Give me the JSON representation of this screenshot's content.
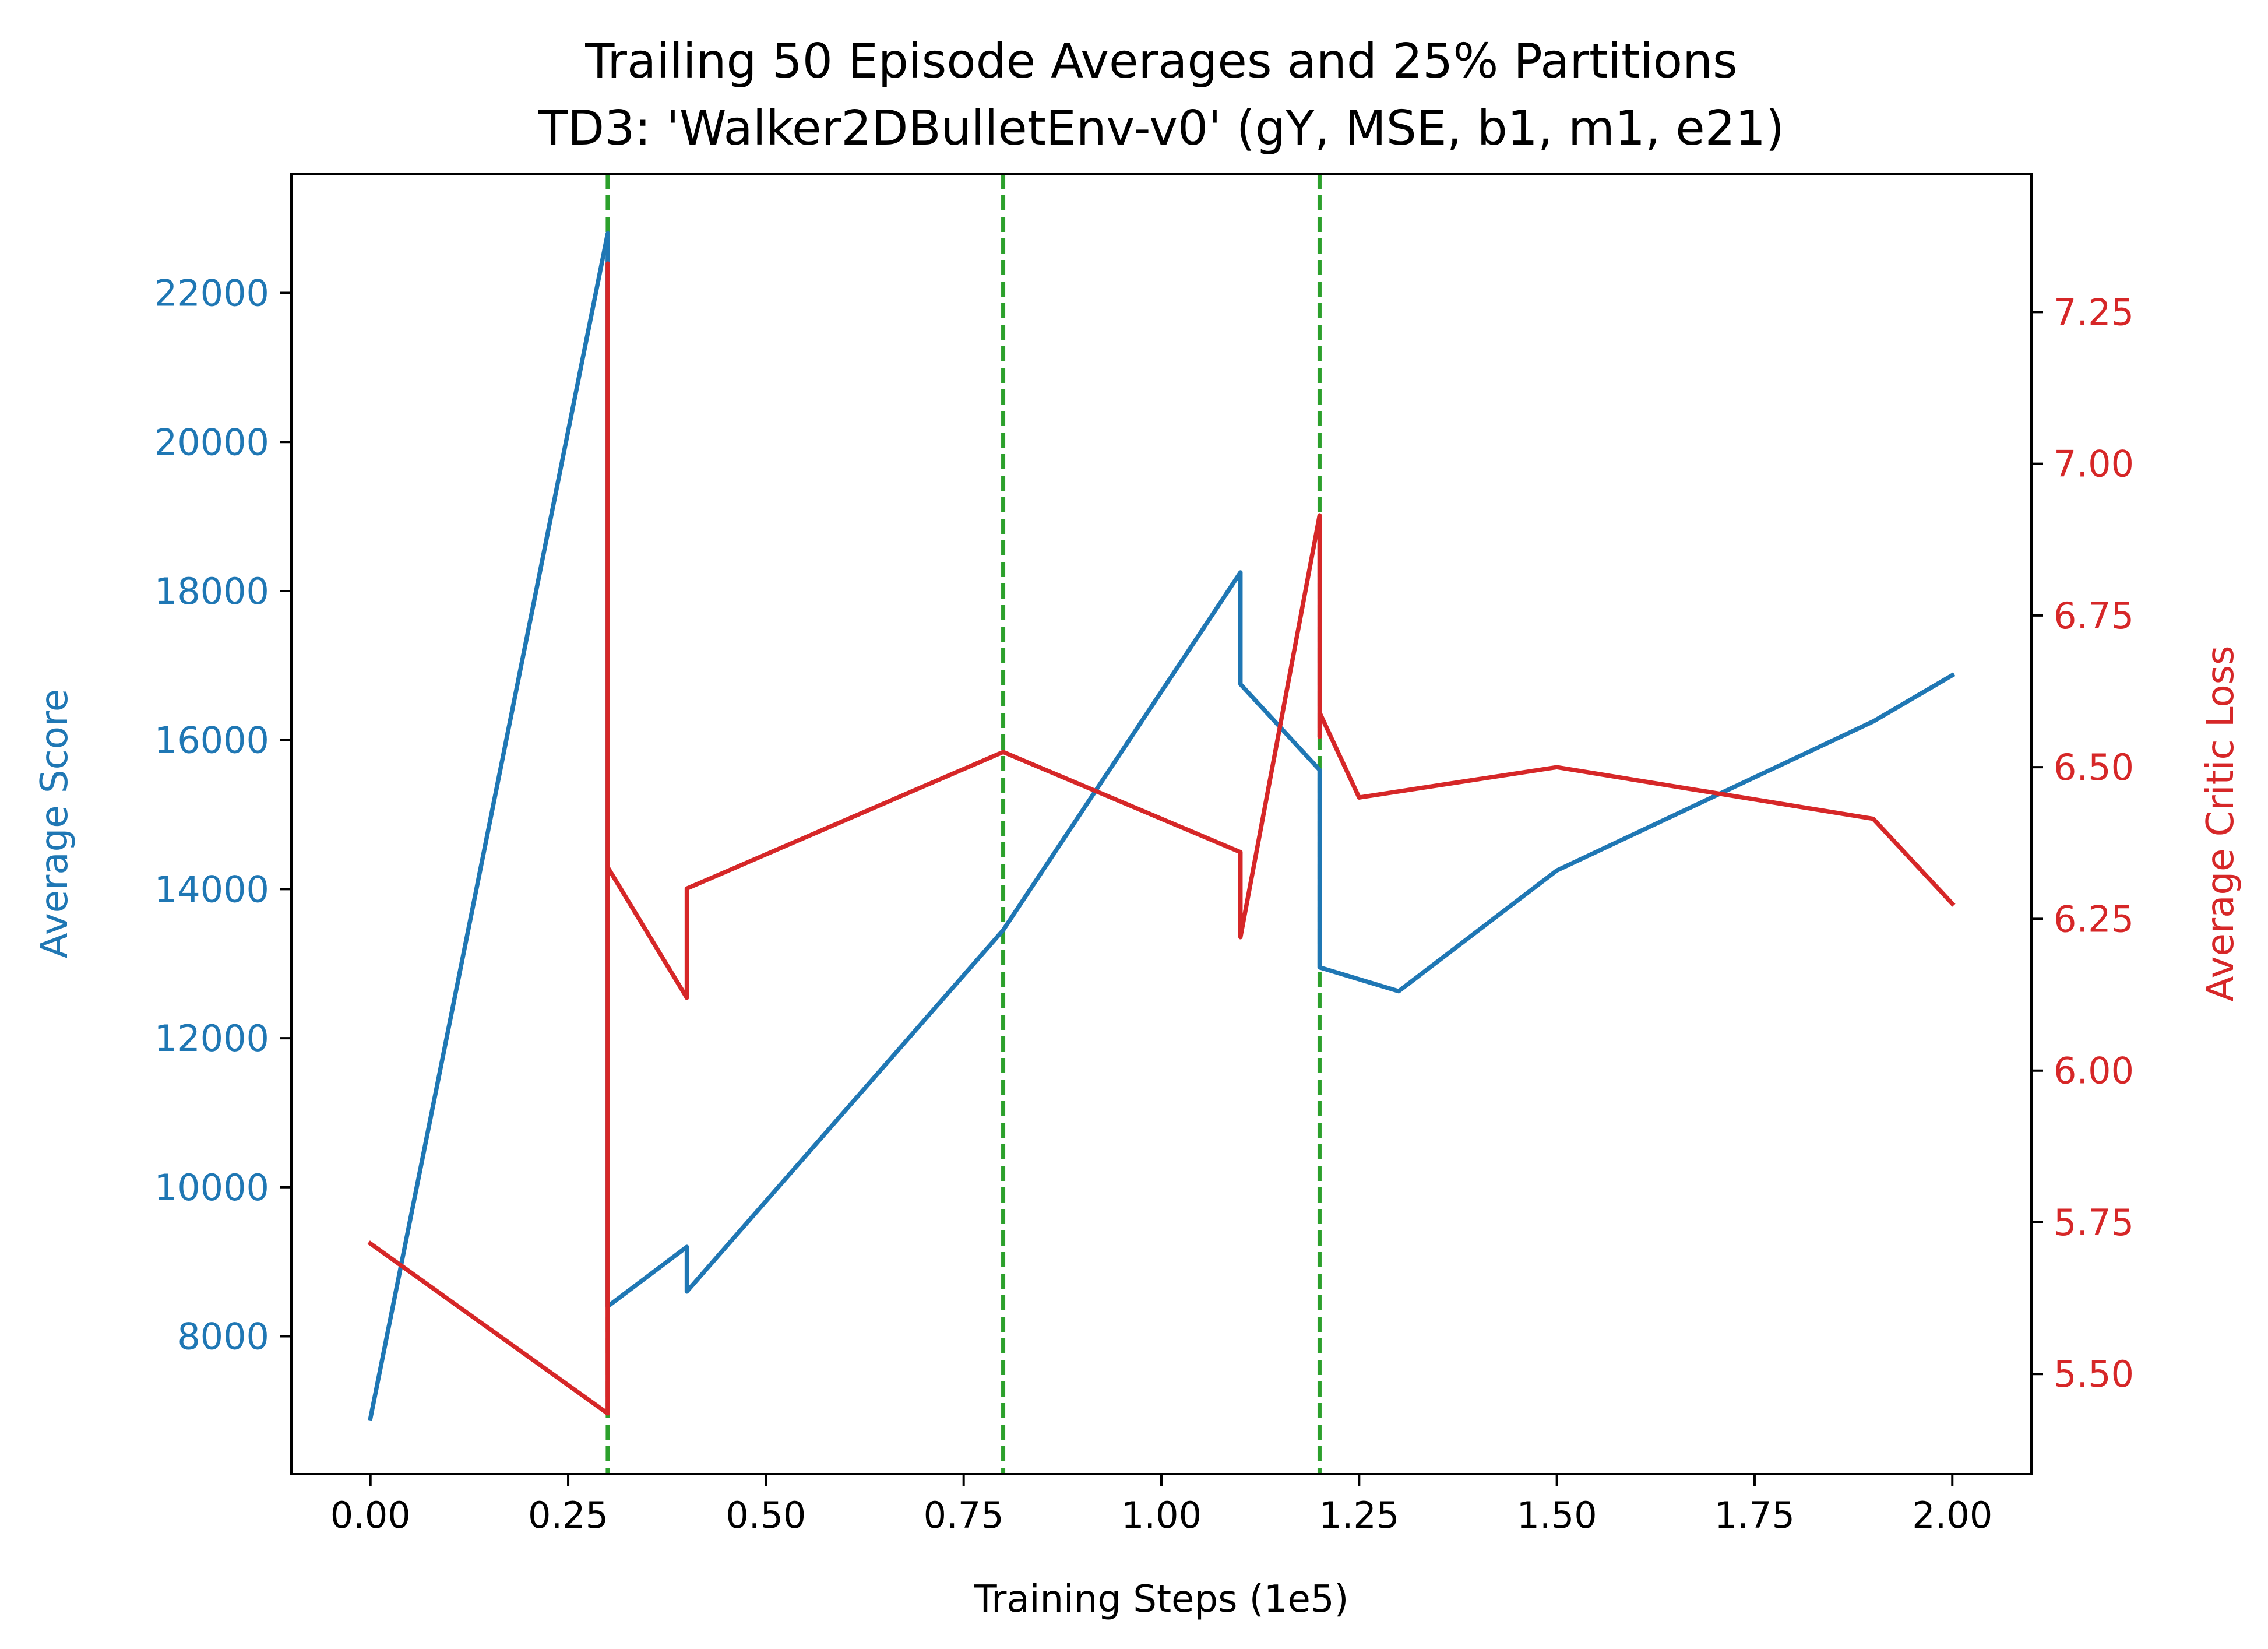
{
  "chart_data": {
    "type": "line",
    "title": "Trailing 50 Episode Averages and 25% Partitions",
    "subtitle": "TD3: 'Walker2DBulletEnv-v0' (gY, MSE, b1, m1, e21)",
    "xlabel": "Training Steps (1e5)",
    "ylabel_left": "Average Score",
    "ylabel_right": "Average Critic Loss",
    "xlim": [
      -0.1,
      2.1
    ],
    "ylim_left": [
      6150,
      23600
    ],
    "ylim_right": [
      5.335,
      7.478
    ],
    "x_ticks": [
      {
        "value": 0.0,
        "label": "0.00"
      },
      {
        "value": 0.25,
        "label": "0.25"
      },
      {
        "value": 0.5,
        "label": "0.50"
      },
      {
        "value": 0.75,
        "label": "0.75"
      },
      {
        "value": 1.0,
        "label": "1.00"
      },
      {
        "value": 1.25,
        "label": "1.25"
      },
      {
        "value": 1.5,
        "label": "1.50"
      },
      {
        "value": 1.75,
        "label": "1.75"
      },
      {
        "value": 2.0,
        "label": "2.00"
      }
    ],
    "y_ticks_left": [
      {
        "value": 8000,
        "label": "8000"
      },
      {
        "value": 10000,
        "label": "10000"
      },
      {
        "value": 12000,
        "label": "12000"
      },
      {
        "value": 14000,
        "label": "14000"
      },
      {
        "value": 16000,
        "label": "16000"
      },
      {
        "value": 18000,
        "label": "18000"
      },
      {
        "value": 20000,
        "label": "20000"
      },
      {
        "value": 22000,
        "label": "22000"
      }
    ],
    "y_ticks_right": [
      {
        "value": 5.5,
        "label": "5.50"
      },
      {
        "value": 5.75,
        "label": "5.75"
      },
      {
        "value": 6.0,
        "label": "6.00"
      },
      {
        "value": 6.25,
        "label": "6.25"
      },
      {
        "value": 6.5,
        "label": "6.50"
      },
      {
        "value": 6.75,
        "label": "6.75"
      },
      {
        "value": 7.0,
        "label": "7.00"
      },
      {
        "value": 7.25,
        "label": "7.25"
      }
    ],
    "partition_lines": [
      0.3,
      0.8,
      1.2
    ],
    "grid": false,
    "series": [
      {
        "axis": "left",
        "color": "#1f77b4",
        "points": [
          [
            0.0,
            6900
          ],
          [
            0.3,
            22800
          ],
          [
            0.3,
            8400
          ],
          [
            0.4,
            9200
          ],
          [
            0.4,
            8600
          ],
          [
            0.8,
            13450
          ],
          [
            1.1,
            18250
          ],
          [
            1.1,
            16750
          ],
          [
            1.2,
            15600
          ],
          [
            1.2,
            12950
          ],
          [
            1.3,
            12630
          ],
          [
            1.5,
            14250
          ],
          [
            1.9,
            16250
          ],
          [
            2.0,
            16870
          ]
        ]
      },
      {
        "axis": "right",
        "color": "#d62728",
        "points": [
          [
            0.0,
            5.715
          ],
          [
            0.3,
            5.435
          ],
          [
            0.3,
            7.33
          ],
          [
            0.3,
            6.335
          ],
          [
            0.4,
            6.12
          ],
          [
            0.4,
            6.3
          ],
          [
            0.8,
            6.525
          ],
          [
            1.1,
            6.36
          ],
          [
            1.1,
            6.22
          ],
          [
            1.2,
            6.915
          ],
          [
            1.2,
            6.55
          ],
          [
            1.2,
            6.59
          ],
          [
            1.25,
            6.45
          ],
          [
            1.5,
            6.5
          ],
          [
            1.9,
            6.415
          ],
          [
            2.0,
            6.275
          ]
        ]
      }
    ],
    "colors": {
      "left_axis": "#1f77b4",
      "right_axis": "#d62728",
      "partition": "#2ca02c"
    }
  }
}
